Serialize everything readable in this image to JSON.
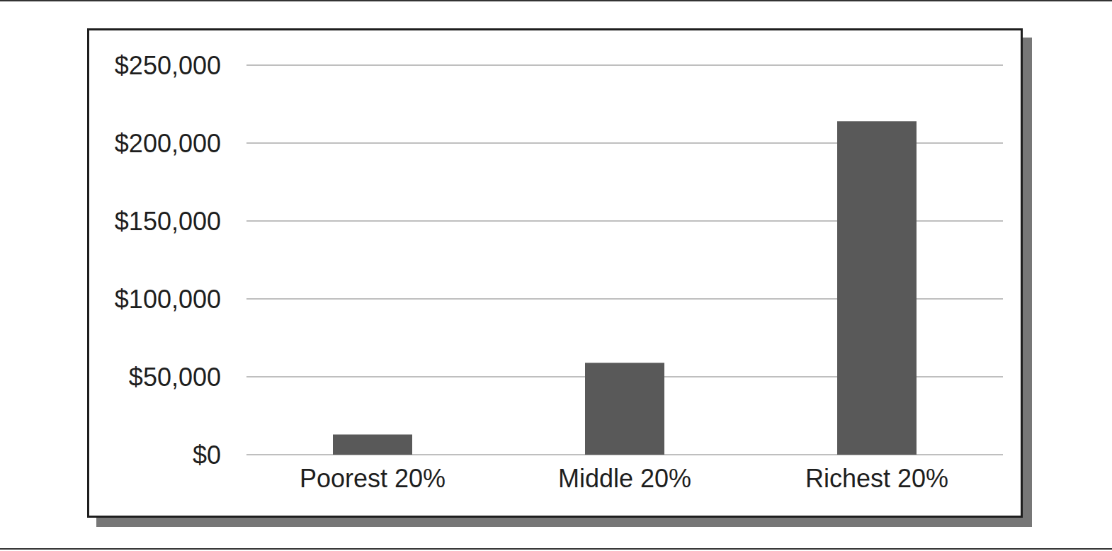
{
  "chart_data": {
    "type": "bar",
    "categories": [
      "Poorest 20%",
      "Middle 20%",
      "Richest 20%"
    ],
    "values": [
      13000,
      59000,
      214000
    ],
    "color": "#595959",
    "ylim": [
      0,
      250000
    ],
    "yticks": [
      {
        "value": 0,
        "label": "$0"
      },
      {
        "value": 50000,
        "label": "$50,000"
      },
      {
        "value": 100000,
        "label": "$100,000"
      },
      {
        "value": 150000,
        "label": "$150,000"
      },
      {
        "value": 200000,
        "label": "$200,000"
      },
      {
        "value": 250000,
        "label": "$250,000"
      }
    ],
    "grid": true
  }
}
